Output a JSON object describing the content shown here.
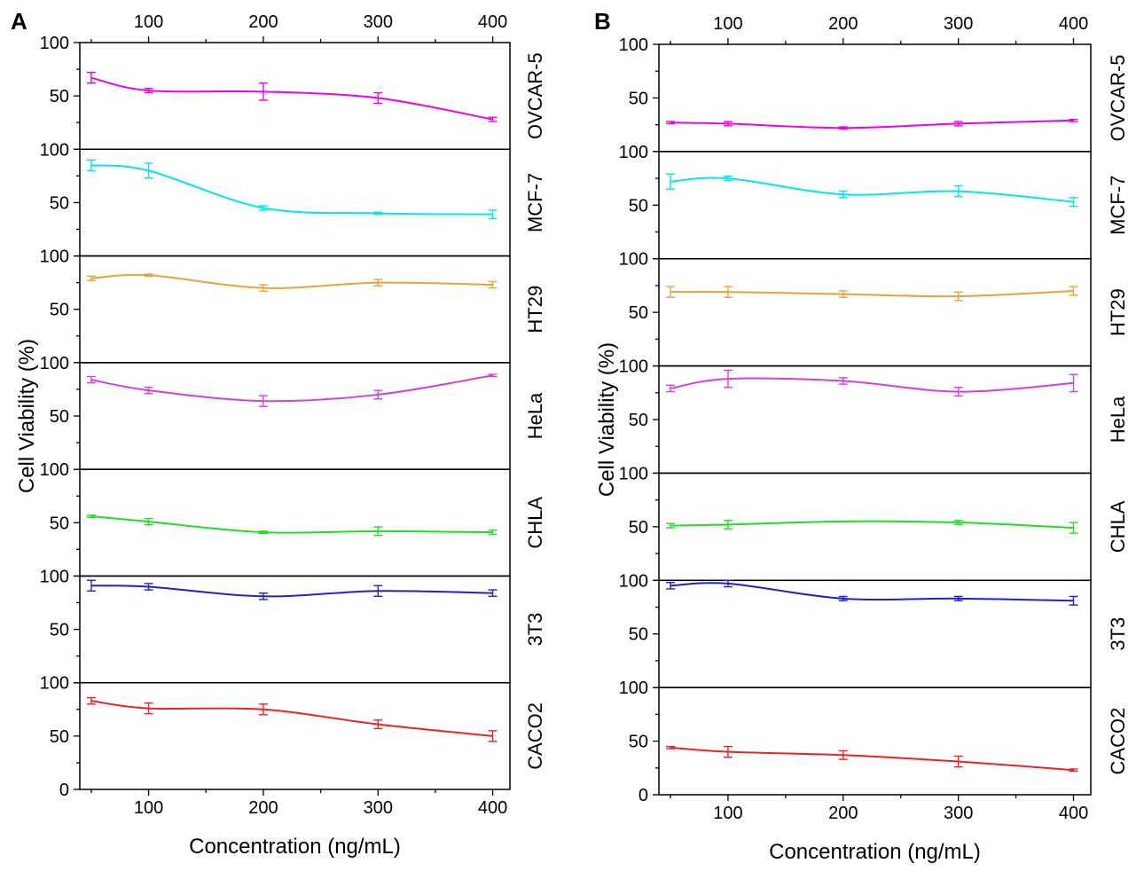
{
  "chart_data": [
    {
      "type": "line",
      "panel_label": "A",
      "xlabel": "Concentration (ng/mL)",
      "ylabel": "Cell Viability (%)",
      "x": [
        50,
        100,
        200,
        300,
        400
      ],
      "x_ticks": [
        "100",
        "200",
        "300",
        "400"
      ],
      "xlim": [
        40,
        415
      ],
      "ylim": [
        0,
        100
      ],
      "y_ticks": [
        "0",
        "50",
        "100"
      ],
      "series": [
        {
          "name": "OVCAR-5",
          "color": "#ee00ee",
          "values": [
            67,
            55,
            54,
            48,
            28
          ],
          "errors": [
            5,
            2,
            8,
            5,
            2
          ]
        },
        {
          "name": "MCF-7",
          "color": "#00e5ee",
          "values": [
            85,
            80,
            45,
            40,
            39
          ],
          "errors": [
            5,
            7,
            2,
            1,
            4
          ]
        },
        {
          "name": "HT29",
          "color": "#e8a33c",
          "values": [
            79,
            82,
            70,
            75,
            73
          ],
          "errors": [
            2,
            1,
            3,
            3,
            3
          ]
        },
        {
          "name": "HeLa",
          "color": "#d43fe0",
          "values": [
            84,
            74,
            64,
            70,
            88
          ],
          "errors": [
            3,
            3,
            5,
            4,
            1
          ]
        },
        {
          "name": "CHLA",
          "color": "#22dd22",
          "values": [
            56,
            51,
            41,
            42,
            41
          ],
          "errors": [
            1,
            3,
            1,
            4,
            2
          ]
        },
        {
          "name": "3T3",
          "color": "#2222cc",
          "values": [
            91,
            90,
            81,
            86,
            84
          ],
          "errors": [
            5,
            3,
            3,
            5,
            3
          ]
        },
        {
          "name": "CACO2",
          "color": "#ee2222",
          "values": [
            83,
            76,
            75,
            61,
            50
          ],
          "errors": [
            3,
            5,
            5,
            4,
            5
          ]
        }
      ]
    },
    {
      "type": "line",
      "panel_label": "B",
      "xlabel": "Concentration (ng/mL)",
      "ylabel": "Cell Viability (%)",
      "x": [
        50,
        100,
        200,
        300,
        400
      ],
      "x_ticks": [
        "100",
        "200",
        "300",
        "400"
      ],
      "xlim": [
        40,
        415
      ],
      "ylim": [
        0,
        100
      ],
      "y_ticks": [
        "0",
        "50",
        "100"
      ],
      "series": [
        {
          "name": "OVCAR-5",
          "color": "#ee00ee",
          "values": [
            27,
            26,
            22,
            26,
            29
          ],
          "errors": [
            1,
            2,
            1,
            2,
            1
          ]
        },
        {
          "name": "MCF-7",
          "color": "#00e5ee",
          "values": [
            72,
            75,
            60,
            63,
            53
          ],
          "errors": [
            7,
            2,
            3,
            5,
            4
          ]
        },
        {
          "name": "HT29",
          "color": "#e8a33c",
          "values": [
            69,
            69,
            67,
            65,
            70
          ],
          "errors": [
            5,
            5,
            3,
            4,
            4
          ]
        },
        {
          "name": "HeLa",
          "color": "#d43fe0",
          "values": [
            79,
            88,
            86,
            76,
            84
          ],
          "errors": [
            3,
            8,
            3,
            4,
            8
          ]
        },
        {
          "name": "CHLA",
          "color": "#22dd22",
          "values": [
            51,
            52,
            55,
            54,
            49
          ],
          "errors": [
            2,
            4,
            0,
            2,
            5
          ]
        },
        {
          "name": "3T3",
          "color": "#2222cc",
          "values": [
            95,
            97,
            83,
            83,
            81
          ],
          "errors": [
            3,
            3,
            2,
            2,
            4
          ]
        },
        {
          "name": "CACO2",
          "color": "#ee2222",
          "values": [
            44,
            40,
            37,
            31,
            23
          ],
          "errors": [
            1,
            5,
            4,
            5,
            1
          ]
        }
      ]
    }
  ]
}
